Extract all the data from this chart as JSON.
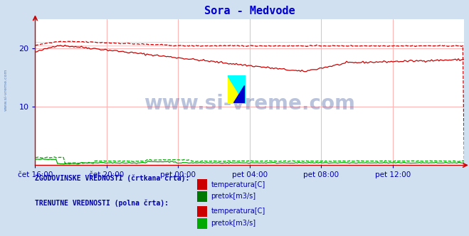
{
  "title": "Sora - Medvode",
  "title_color": "#0000cc",
  "bg_color": "#d0e0f0",
  "plot_bg_color": "#ffffff",
  "grid_color": "#ffb0b0",
  "axis_color": "#cc0000",
  "tick_color": "#0000aa",
  "watermark_text": "www.si-vreme.com",
  "watermark_color": "#1a3a8a",
  "xlim": [
    0,
    288
  ],
  "ylim": [
    0,
    25
  ],
  "yticks": [
    10,
    20
  ],
  "xtick_labels": [
    "čet 16:00",
    "čet 20:00",
    "pet 00:00",
    "pet 04:00",
    "pet 08:00",
    "pet 12:00"
  ],
  "xtick_positions": [
    0,
    48,
    96,
    144,
    192,
    240
  ],
  "temp_solid_color": "#cc0000",
  "temp_dashed_color": "#cc0000",
  "flow_solid_color": "#00aa00",
  "flow_dashed_color": "#00aa00",
  "legend_text_color": "#0000aa",
  "hist_label": "ZGODOVINSKE VREDNOSTI (črtkana črta):",
  "curr_label": "TRENUTNE VREDNOSTI (polna črta):",
  "temp_label": "temperatura[C]",
  "flow_label": "pretok[m3/s]",
  "sidebar_text": "www.si-vreme.com",
  "sidebar_color": "#4a6fa5",
  "figsize": [
    6.59,
    3.32
  ],
  "dpi": 100
}
